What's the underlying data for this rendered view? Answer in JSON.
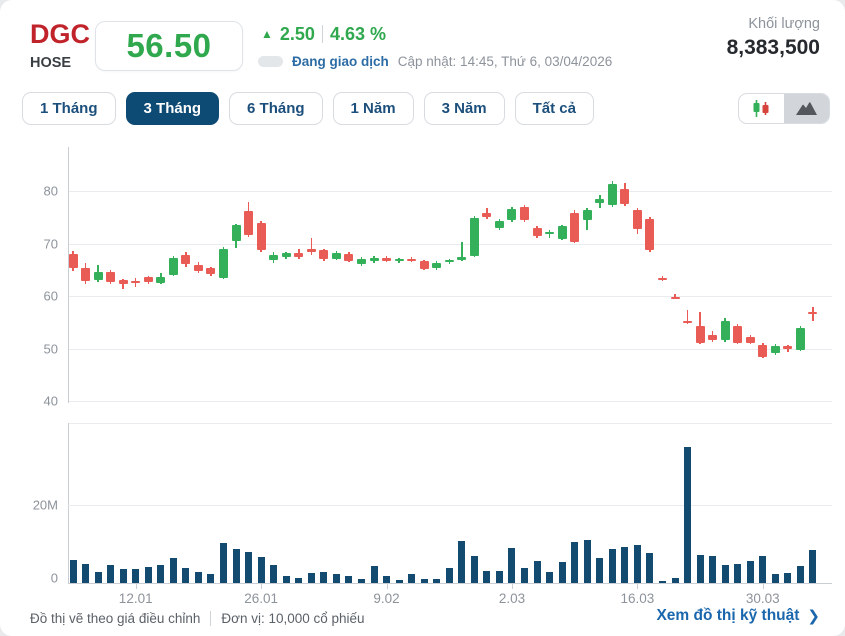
{
  "header": {
    "symbol": "DGC",
    "exchange": "HOSE",
    "price": "56.50",
    "up_arrow": "▲",
    "change": "2.50",
    "change_percent": "4.63 %",
    "status": "Đang giao dịch",
    "updated": "Cập nhật: 14:45, Thứ 6, 03/04/2026",
    "volume_label": "Khối lượng",
    "volume_value": "8,383,500"
  },
  "controls": {
    "ranges": [
      {
        "label": "1 Tháng",
        "active": false
      },
      {
        "label": "3 Tháng",
        "active": true
      },
      {
        "label": "6 Tháng",
        "active": false
      },
      {
        "label": "1 Năm",
        "active": false
      },
      {
        "label": "3 Năm",
        "active": false
      },
      {
        "label": "Tất cả",
        "active": false
      }
    ],
    "chart_types": [
      {
        "icon": "candlestick-icon",
        "active": true
      },
      {
        "icon": "area-chart-icon",
        "active": false
      }
    ]
  },
  "footer": {
    "note1": "Đồ thị vẽ theo giá điều chỉnh",
    "note2": "Đơn vị: 10,000 cổ phiếu",
    "link": "Xem đồ thị kỹ thuật",
    "link_arrow": "❯"
  },
  "colors": {
    "up_green": "#33b059",
    "down_red": "#e95c55",
    "price_green": "#2fa84e",
    "symbol_red": "#c1232b",
    "navy": "#0d4a74",
    "volume_bar": "#134a70",
    "link_blue": "#1b67ad",
    "muted_gray": "#8d939b"
  },
  "chart_data": {
    "type": "candlestick",
    "title": "DGC daily price, 3 months",
    "legend_position": "none",
    "grid": true,
    "y_ticks": [
      80,
      70,
      60,
      50,
      40
    ],
    "price_ylim": [
      38,
      88
    ],
    "volume_ticks": [
      {
        "label": "20M",
        "value": 20
      },
      {
        "label": "0",
        "value": 0
      }
    ],
    "x_ticks": [
      {
        "label": "12.01",
        "index": 5
      },
      {
        "label": "26.01",
        "index": 15
      },
      {
        "label": "9.02",
        "index": 25
      },
      {
        "label": "2.03",
        "index": 35
      },
      {
        "label": "16.03",
        "index": 45
      },
      {
        "label": "30.03",
        "index": 55
      }
    ],
    "series_note": "candles = [open, high, low, close, volume_millions]",
    "candles": [
      [
        68.0,
        68.6,
        64.8,
        65.3,
        5.9
      ],
      [
        65.3,
        66.3,
        62.2,
        62.8,
        5.0
      ],
      [
        63.0,
        65.9,
        62.6,
        64.6,
        2.7
      ],
      [
        64.6,
        65.0,
        62.2,
        62.6,
        4.7
      ],
      [
        63.0,
        63.3,
        61.4,
        62.3,
        3.6
      ],
      [
        62.8,
        63.5,
        61.7,
        62.4,
        3.6
      ],
      [
        63.6,
        63.9,
        62.3,
        62.6,
        4.0
      ],
      [
        62.5,
        64.4,
        62.2,
        63.7,
        4.5
      ],
      [
        64.0,
        67.7,
        63.8,
        67.3,
        6.5
      ],
      [
        67.8,
        68.3,
        65.6,
        66.0,
        3.8
      ],
      [
        66.0,
        66.4,
        64.3,
        64.7,
        2.7
      ],
      [
        65.3,
        65.6,
        63.9,
        64.1,
        2.4
      ],
      [
        63.5,
        69.3,
        63.3,
        69.0,
        10.2
      ],
      [
        70.5,
        73.8,
        69.2,
        73.5,
        8.7
      ],
      [
        76.1,
        78.0,
        71.3,
        71.6,
        8.0
      ],
      [
        73.9,
        74.3,
        68.4,
        68.8,
        6.7
      ],
      [
        66.9,
        68.3,
        66.2,
        67.8,
        4.6
      ],
      [
        67.4,
        68.4,
        67.0,
        68.2,
        1.9
      ],
      [
        68.2,
        68.9,
        67.1,
        67.4,
        1.2
      ],
      [
        68.9,
        71.0,
        67.9,
        68.3,
        2.5
      ],
      [
        68.7,
        69.0,
        66.7,
        67.0,
        2.7
      ],
      [
        67.1,
        68.5,
        66.8,
        68.2,
        2.4
      ],
      [
        68.0,
        68.3,
        66.4,
        66.7,
        1.7
      ],
      [
        66.1,
        67.4,
        65.8,
        67.1,
        1.0
      ],
      [
        66.6,
        67.6,
        66.2,
        67.3,
        4.3
      ],
      [
        67.3,
        67.7,
        66.4,
        66.7,
        1.9
      ],
      [
        66.7,
        67.2,
        66.3,
        67.0,
        0.8
      ],
      [
        67.0,
        67.5,
        66.5,
        66.8,
        2.3
      ],
      [
        66.6,
        66.9,
        64.9,
        65.2,
        1.0
      ],
      [
        65.3,
        66.6,
        65.0,
        66.3,
        1.0
      ],
      [
        66.4,
        67.1,
        66.0,
        66.9,
        3.9
      ],
      [
        66.9,
        70.3,
        66.6,
        67.4,
        10.7
      ],
      [
        67.6,
        75.3,
        67.4,
        74.9,
        6.8
      ],
      [
        75.8,
        76.8,
        74.6,
        75.1,
        3.0
      ],
      [
        72.9,
        74.6,
        72.5,
        74.2,
        3.0
      ],
      [
        74.4,
        76.9,
        74.1,
        76.5,
        9.1
      ],
      [
        76.9,
        77.3,
        74.1,
        74.4,
        3.9
      ],
      [
        72.9,
        73.4,
        71.1,
        71.5,
        5.6
      ],
      [
        71.8,
        72.5,
        71.0,
        72.2,
        2.9
      ],
      [
        70.9,
        73.6,
        70.6,
        73.3,
        5.5
      ],
      [
        75.9,
        76.4,
        70.0,
        70.3,
        10.5
      ],
      [
        74.5,
        76.7,
        72.6,
        76.3,
        10.9
      ],
      [
        77.7,
        79.3,
        76.7,
        78.4,
        6.3
      ],
      [
        77.3,
        82.0,
        77.0,
        81.4,
        8.7
      ],
      [
        80.4,
        81.6,
        77.1,
        77.5,
        9.3
      ],
      [
        76.4,
        76.8,
        71.9,
        72.7,
        9.8
      ],
      [
        74.7,
        75.0,
        68.4,
        68.8,
        7.7
      ],
      [
        63.4,
        63.8,
        62.9,
        63.2,
        0.5
      ],
      [
        59.9,
        60.3,
        59.4,
        59.7,
        1.2
      ],
      [
        55.3,
        57.4,
        54.6,
        55.0,
        35.0
      ],
      [
        54.2,
        57.0,
        50.8,
        51.0,
        7.3
      ],
      [
        52.6,
        53.3,
        51.2,
        51.6,
        6.8
      ],
      [
        51.6,
        55.9,
        51.3,
        55.3,
        4.5
      ],
      [
        54.2,
        54.6,
        50.9,
        51.1,
        4.9
      ],
      [
        52.2,
        52.6,
        50.8,
        51.0,
        5.7
      ],
      [
        50.7,
        51.0,
        48.1,
        48.4,
        6.8
      ],
      [
        49.1,
        50.8,
        48.8,
        50.4,
        2.3
      ],
      [
        50.5,
        50.7,
        49.3,
        50.0,
        2.6
      ],
      [
        49.8,
        54.2,
        49.6,
        54.0,
        4.3
      ],
      [
        56.9,
        58.0,
        55.2,
        56.5,
        8.4
      ]
    ]
  }
}
